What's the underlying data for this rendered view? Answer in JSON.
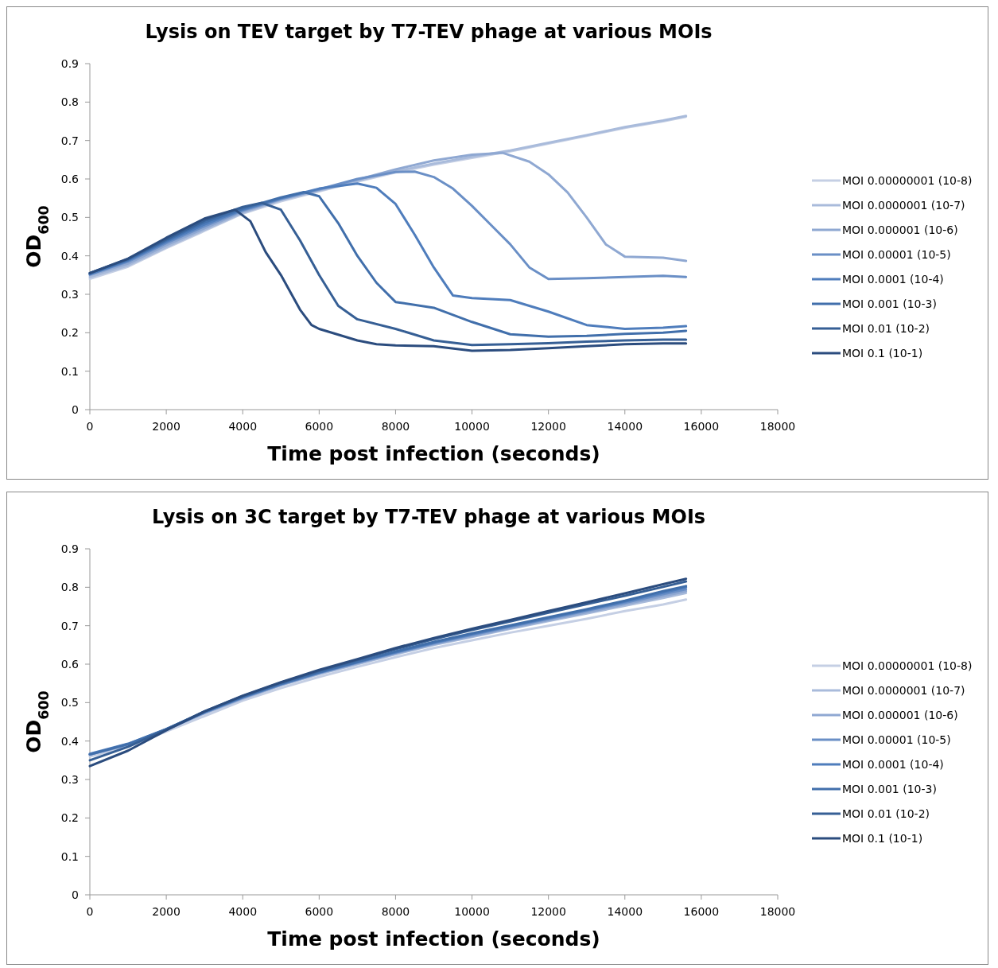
{
  "chart_data": [
    {
      "type": "line",
      "title": "Lysis on TEV target by T7-TEV phage at various MOIs",
      "xlabel": "Time post infection (seconds)",
      "ylabel": "OD$_{600}$",
      "xlim": [
        0,
        18000
      ],
      "xticks": [
        0,
        2000,
        4000,
        6000,
        8000,
        10000,
        12000,
        14000,
        16000,
        18000
      ],
      "ylim": [
        0,
        0.9
      ],
      "yticks": [
        0,
        0.1,
        0.2,
        0.3,
        0.4,
        0.5,
        0.6,
        0.7,
        0.8,
        0.9
      ],
      "legend": "right",
      "series": [
        {
          "name": "MOI 0.00000001 (10-8)",
          "color": "#c5cfe4",
          "x": [
            0,
            1000,
            2000,
            3000,
            4000,
            5000,
            6000,
            7000,
            8000,
            9000,
            10000,
            11000,
            12000,
            13000,
            14000,
            15000,
            15600
          ],
          "values": [
            0.34,
            0.372,
            0.42,
            0.465,
            0.51,
            0.542,
            0.568,
            0.593,
            0.617,
            0.637,
            0.655,
            0.672,
            0.692,
            0.712,
            0.733,
            0.75,
            0.762
          ]
        },
        {
          "name": "MOI 0.0000001 (10-7)",
          "color": "#a9bbdb",
          "x": [
            0,
            1000,
            2000,
            3000,
            4000,
            5000,
            6000,
            7000,
            8000,
            9000,
            10000,
            11000,
            12000,
            13000,
            14000,
            15000,
            15600
          ],
          "values": [
            0.345,
            0.375,
            0.423,
            0.468,
            0.512,
            0.545,
            0.57,
            0.595,
            0.62,
            0.64,
            0.658,
            0.674,
            0.694,
            0.714,
            0.735,
            0.752,
            0.764
          ]
        },
        {
          "name": "MOI 0.000001 (10-6)",
          "color": "#8fa8d2",
          "x": [
            0,
            1000,
            2000,
            3000,
            4000,
            5000,
            6000,
            7000,
            8000,
            9000,
            10000,
            10800,
            11500,
            12000,
            12500,
            13000,
            13500,
            14000,
            15000,
            15600
          ],
          "values": [
            0.35,
            0.38,
            0.428,
            0.472,
            0.515,
            0.547,
            0.572,
            0.598,
            0.625,
            0.648,
            0.663,
            0.668,
            0.645,
            0.612,
            0.565,
            0.5,
            0.43,
            0.398,
            0.395,
            0.387
          ]
        },
        {
          "name": "MOI 0.00001 (10-5)",
          "color": "#6a8fc6",
          "x": [
            0,
            1000,
            2000,
            3000,
            4000,
            5000,
            6000,
            7000,
            8000,
            8500,
            9000,
            9500,
            10000,
            10500,
            11000,
            11500,
            12000,
            13000,
            14000,
            15000,
            15600
          ],
          "values": [
            0.352,
            0.385,
            0.433,
            0.477,
            0.518,
            0.548,
            0.573,
            0.6,
            0.618,
            0.619,
            0.605,
            0.575,
            0.53,
            0.48,
            0.43,
            0.37,
            0.34,
            0.342,
            0.345,
            0.348,
            0.345
          ]
        },
        {
          "name": "MOI 0.0001 (10-4)",
          "color": "#4f7dbc",
          "x": [
            0,
            1000,
            2000,
            3000,
            4000,
            5000,
            6000,
            7000,
            7500,
            8000,
            8500,
            9000,
            9500,
            10000,
            11000,
            12000,
            13000,
            14000,
            15000,
            15600
          ],
          "values": [
            0.352,
            0.388,
            0.437,
            0.482,
            0.52,
            0.55,
            0.575,
            0.588,
            0.577,
            0.535,
            0.455,
            0.37,
            0.297,
            0.29,
            0.285,
            0.255,
            0.22,
            0.21,
            0.213,
            0.217
          ]
        },
        {
          "name": "MOI 0.001 (10-3)",
          "color": "#416fab",
          "x": [
            0,
            1000,
            2000,
            3000,
            4000,
            5000,
            5600,
            6000,
            6500,
            7000,
            7500,
            8000,
            9000,
            10000,
            11000,
            12000,
            13000,
            14000,
            15000,
            15600
          ],
          "values": [
            0.355,
            0.39,
            0.44,
            0.487,
            0.523,
            0.552,
            0.566,
            0.555,
            0.485,
            0.4,
            0.33,
            0.28,
            0.265,
            0.228,
            0.196,
            0.19,
            0.192,
            0.197,
            0.2,
            0.205
          ]
        },
        {
          "name": "MOI 0.01 (10-2)",
          "color": "#365f95",
          "x": [
            0,
            1000,
            2000,
            3000,
            4000,
            4500,
            5000,
            5500,
            6000,
            6500,
            7000,
            8000,
            9000,
            10000,
            11000,
            12000,
            13000,
            14000,
            15000,
            15600
          ],
          "values": [
            0.355,
            0.392,
            0.443,
            0.492,
            0.527,
            0.538,
            0.52,
            0.44,
            0.35,
            0.27,
            0.235,
            0.21,
            0.18,
            0.168,
            0.17,
            0.173,
            0.177,
            0.18,
            0.182,
            0.182
          ]
        },
        {
          "name": "MOI 0.1 (10-1)",
          "color": "#2b4c7e",
          "x": [
            0,
            1000,
            2000,
            3000,
            3800,
            4200,
            4600,
            5000,
            5500,
            5800,
            6000,
            7000,
            7500,
            8000,
            9000,
            10000,
            11000,
            12000,
            13000,
            14000,
            15000,
            15600
          ],
          "values": [
            0.355,
            0.393,
            0.447,
            0.497,
            0.52,
            0.49,
            0.41,
            0.35,
            0.26,
            0.22,
            0.21,
            0.18,
            0.17,
            0.167,
            0.165,
            0.153,
            0.155,
            0.16,
            0.165,
            0.17,
            0.172,
            0.172
          ]
        }
      ]
    },
    {
      "type": "line",
      "title": "Lysis on 3C target by T7-TEV phage at various MOIs",
      "xlabel": "Time post infection (seconds)",
      "ylabel": "OD$_{600}$",
      "xlim": [
        0,
        18000
      ],
      "xticks": [
        0,
        2000,
        4000,
        6000,
        8000,
        10000,
        12000,
        14000,
        16000,
        18000
      ],
      "ylim": [
        0,
        0.9
      ],
      "yticks": [
        0,
        0.1,
        0.2,
        0.3,
        0.4,
        0.5,
        0.6,
        0.7,
        0.8,
        0.9
      ],
      "legend": "right",
      "series": [
        {
          "name": "MOI 0.00000001 (10-8)",
          "color": "#c5cfe4",
          "x": [
            0,
            1000,
            2000,
            3000,
            4000,
            5000,
            6000,
            7000,
            8000,
            9000,
            10000,
            11000,
            12000,
            13000,
            14000,
            15000,
            15600
          ],
          "values": [
            0.36,
            0.385,
            0.425,
            0.465,
            0.505,
            0.538,
            0.567,
            0.593,
            0.618,
            0.642,
            0.662,
            0.682,
            0.7,
            0.718,
            0.738,
            0.755,
            0.768
          ]
        },
        {
          "name": "MOI 0.0000001 (10-7)",
          "color": "#a9bbdb",
          "x": [
            0,
            1000,
            2000,
            3000,
            4000,
            5000,
            6000,
            7000,
            8000,
            9000,
            10000,
            11000,
            12000,
            13000,
            14000,
            15000,
            15600
          ],
          "values": [
            0.365,
            0.39,
            0.43,
            0.472,
            0.51,
            0.545,
            0.574,
            0.6,
            0.626,
            0.65,
            0.671,
            0.692,
            0.712,
            0.732,
            0.752,
            0.772,
            0.785
          ]
        },
        {
          "name": "MOI 0.000001 (10-6)",
          "color": "#8fa8d2",
          "x": [
            0,
            1000,
            2000,
            3000,
            4000,
            5000,
            6000,
            7000,
            8000,
            9000,
            10000,
            11000,
            12000,
            13000,
            14000,
            15000,
            15600
          ],
          "values": [
            0.365,
            0.39,
            0.43,
            0.473,
            0.512,
            0.546,
            0.576,
            0.602,
            0.628,
            0.652,
            0.673,
            0.694,
            0.715,
            0.735,
            0.756,
            0.777,
            0.79
          ]
        },
        {
          "name": "MOI 0.00001 (10-5)",
          "color": "#6a8fc6",
          "x": [
            0,
            1000,
            2000,
            3000,
            4000,
            5000,
            6000,
            7000,
            8000,
            9000,
            10000,
            11000,
            12000,
            13000,
            14000,
            15000,
            15600
          ],
          "values": [
            0.365,
            0.392,
            0.43,
            0.474,
            0.513,
            0.547,
            0.577,
            0.604,
            0.63,
            0.654,
            0.676,
            0.697,
            0.718,
            0.739,
            0.76,
            0.782,
            0.795
          ]
        },
        {
          "name": "MOI 0.0001 (10-4)",
          "color": "#4f7dbc",
          "x": [
            0,
            1000,
            2000,
            3000,
            4000,
            5000,
            6000,
            7000,
            8000,
            9000,
            10000,
            11000,
            12000,
            13000,
            14000,
            15000,
            15600
          ],
          "values": [
            0.367,
            0.393,
            0.431,
            0.475,
            0.514,
            0.548,
            0.578,
            0.605,
            0.631,
            0.656,
            0.678,
            0.699,
            0.72,
            0.741,
            0.763,
            0.786,
            0.8
          ]
        },
        {
          "name": "MOI 0.001 (10-3)",
          "color": "#416fab",
          "x": [
            0,
            1000,
            2000,
            3000,
            4000,
            5000,
            6000,
            7000,
            8000,
            9000,
            10000,
            11000,
            12000,
            13000,
            14000,
            15000,
            15600
          ],
          "values": [
            0.365,
            0.392,
            0.431,
            0.476,
            0.515,
            0.549,
            0.579,
            0.606,
            0.633,
            0.658,
            0.68,
            0.701,
            0.722,
            0.743,
            0.765,
            0.79,
            0.803
          ]
        },
        {
          "name": "MOI 0.01 (10-2)",
          "color": "#365f95",
          "x": [
            0,
            1000,
            2000,
            3000,
            4000,
            5000,
            6000,
            7000,
            8000,
            9000,
            10000,
            11000,
            12000,
            13000,
            14000,
            15000,
            15600
          ],
          "values": [
            0.35,
            0.385,
            0.43,
            0.477,
            0.517,
            0.552,
            0.583,
            0.611,
            0.639,
            0.665,
            0.689,
            0.711,
            0.734,
            0.756,
            0.778,
            0.801,
            0.815
          ]
        },
        {
          "name": "MOI 0.1 (10-1)",
          "color": "#2b4c7e",
          "x": [
            0,
            1000,
            2000,
            3000,
            4000,
            5000,
            6000,
            7000,
            8000,
            9000,
            10000,
            11000,
            12000,
            13000,
            14000,
            15000,
            15600
          ],
          "values": [
            0.335,
            0.375,
            0.428,
            0.477,
            0.518,
            0.553,
            0.585,
            0.613,
            0.642,
            0.668,
            0.692,
            0.715,
            0.738,
            0.761,
            0.784,
            0.808,
            0.822
          ]
        }
      ]
    }
  ]
}
